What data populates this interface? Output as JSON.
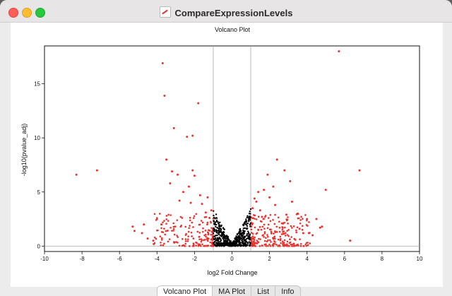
{
  "window": {
    "title": "CompareExpressionLevels",
    "icon": "plot-document-icon"
  },
  "tabs": [
    "Volcano Plot",
    "MA Plot",
    "List",
    "Info"
  ],
  "active_tab": 0,
  "colors": {
    "significant": "#e8322e",
    "not_significant": "#000000",
    "threshold_line": "#aaaaaa"
  },
  "chart_data": {
    "type": "scatter",
    "title": "Volcano Plot",
    "xlabel": "log2 Fold Change",
    "ylabel": "-log10(pvalue_adj)",
    "xlim": [
      -10,
      10
    ],
    "ylim": [
      -0.5,
      18.5
    ],
    "xticks": [
      -10,
      -8,
      -6,
      -4,
      -2,
      0,
      2,
      4,
      6,
      8,
      10
    ],
    "yticks": [
      0,
      5,
      10,
      15
    ],
    "threshold_x": [
      -1,
      1
    ],
    "points": [
      [
        -8.3,
        6.6
      ],
      [
        -7.2,
        7.0
      ],
      [
        -5.3,
        1.8
      ],
      [
        -5.2,
        1.4
      ],
      [
        -4.8,
        1.2
      ],
      [
        -4.7,
        2.0
      ],
      [
        -4.5,
        0.7
      ],
      [
        -4.2,
        0.5
      ],
      [
        -3.7,
        16.9
      ],
      [
        -3.6,
        13.9
      ],
      [
        -3.5,
        8.0
      ],
      [
        -3.3,
        5.8
      ],
      [
        -3.2,
        6.9
      ],
      [
        -3.1,
        10.9
      ],
      [
        -2.9,
        6.6
      ],
      [
        -2.8,
        4.2
      ],
      [
        -2.6,
        5.0
      ],
      [
        -2.4,
        10.1
      ],
      [
        -2.3,
        5.5
      ],
      [
        -2.2,
        4.0
      ],
      [
        -2.1,
        10.2
      ],
      [
        -2.1,
        7.0
      ],
      [
        -2.0,
        6.5
      ],
      [
        -1.8,
        13.2
      ],
      [
        -1.7,
        4.7
      ],
      [
        -1.6,
        3.9
      ],
      [
        -1.4,
        3.1
      ],
      [
        -1.3,
        4.5
      ],
      [
        -1.2,
        2.6
      ],
      [
        -1.1,
        3.3
      ],
      [
        1.1,
        3.5
      ],
      [
        1.2,
        4.4
      ],
      [
        1.3,
        4.1
      ],
      [
        1.4,
        5.0
      ],
      [
        1.5,
        3.3
      ],
      [
        1.6,
        2.7
      ],
      [
        1.7,
        5.2
      ],
      [
        1.9,
        6.6
      ],
      [
        2.0,
        4.5
      ],
      [
        2.2,
        5.5
      ],
      [
        2.3,
        3.8
      ],
      [
        2.4,
        8.0
      ],
      [
        2.8,
        7.0
      ],
      [
        2.9,
        2.9
      ],
      [
        3.1,
        6.0
      ],
      [
        3.2,
        4.1
      ],
      [
        3.5,
        3.0
      ],
      [
        3.6,
        1.6
      ],
      [
        3.8,
        1.2
      ],
      [
        4.0,
        2.5
      ],
      [
        4.1,
        1.2
      ],
      [
        4.3,
        1.0
      ],
      [
        4.5,
        2.5
      ],
      [
        4.7,
        1.7
      ],
      [
        4.8,
        1.8
      ],
      [
        5.0,
        5.2
      ],
      [
        5.7,
        18.0
      ],
      [
        6.3,
        0.5
      ],
      [
        6.8,
        7.0
      ]
    ]
  }
}
